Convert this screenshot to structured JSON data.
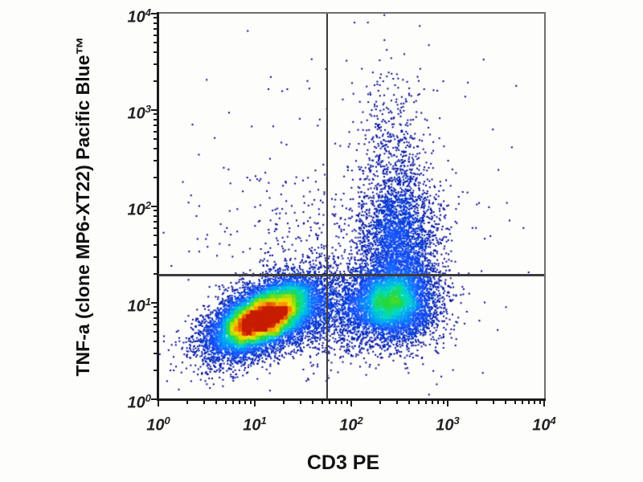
{
  "chart_data": {
    "type": "scatter",
    "subtype": "flow-cytometry-pseudocolor-density",
    "title": "",
    "xlabel": "CD3 PE",
    "ylabel": "TNF-a (clone MP6-XT22) Pacific Blue™",
    "x_scale": "log10",
    "y_scale": "log10",
    "xlim_exponents": [
      0,
      4
    ],
    "ylim_exponents": [
      0,
      4
    ],
    "tick_exponents": [
      0,
      1,
      2,
      3,
      4
    ],
    "minor_tick_multiples": [
      2,
      3,
      4,
      5,
      6,
      7,
      8,
      9
    ],
    "grid": false,
    "legend": false,
    "quadrant_gates": {
      "x_value_log10": 1.75,
      "y_value_log10": 1.29,
      "x_value_approx": 56,
      "y_value_approx": 20
    },
    "populations": [
      {
        "name": "CD3-negative TNF-negative (double-negative, red core)",
        "center_log10": [
          1.1,
          0.85
        ],
        "sigma_log10": [
          0.32,
          0.155
        ],
        "angle_deg": 28,
        "count": 11000,
        "clip": "clamp"
      },
      {
        "name": "CD3-positive TNF-negative (green core)",
        "center_log10": [
          2.42,
          1.0
        ],
        "sigma_log10": [
          0.24,
          0.2
        ],
        "angle_deg": 0,
        "count": 5000,
        "clip": "clamp"
      },
      {
        "name": "CD3-positive TNF-positive cloud",
        "center_log10": [
          2.5,
          1.62
        ],
        "sigma_log10": [
          0.21,
          0.34
        ],
        "angle_deg": 0,
        "count": 2600,
        "clip": "clamp"
      },
      {
        "name": "CD3-positive TNF-high tail",
        "center_log10": [
          2.42,
          2.35
        ],
        "sigma_log10": [
          0.2,
          0.5
        ],
        "angle_deg": 0,
        "count": 650,
        "clip": "clamp"
      },
      {
        "name": "bridge between populations",
        "center_log10": [
          1.8,
          0.85
        ],
        "sigma_log10": [
          0.3,
          0.22
        ],
        "angle_deg": 10,
        "count": 900,
        "clip": "clamp"
      },
      {
        "name": "upper-left sparse scatter",
        "center_log10": [
          1.55,
          1.5
        ],
        "sigma_log10": [
          0.42,
          0.38
        ],
        "angle_deg": 0,
        "count": 230,
        "clip": "discard"
      },
      {
        "name": "background scatter",
        "center_log10": [
          2.0,
          1.6
        ],
        "sigma_log10": [
          1.1,
          0.9
        ],
        "angle_deg": 0,
        "count": 300,
        "clip": "discard"
      }
    ],
    "colormap": [
      {
        "t": 0.0,
        "color": "#000085"
      },
      {
        "t": 0.14,
        "color": "#0030cc"
      },
      {
        "t": 0.28,
        "color": "#1555ff"
      },
      {
        "t": 0.42,
        "color": "#00a0f8"
      },
      {
        "t": 0.54,
        "color": "#00dcc0"
      },
      {
        "t": 0.65,
        "color": "#28d838"
      },
      {
        "t": 0.76,
        "color": "#aae000"
      },
      {
        "t": 0.85,
        "color": "#f0e000"
      },
      {
        "t": 0.93,
        "color": "#ff8000"
      },
      {
        "t": 1.0,
        "color": "#c81e00"
      }
    ],
    "render": {
      "seed": 7,
      "density_bins": 96,
      "cap_quantile": 0.88,
      "point_size": 2
    },
    "colors": {
      "axis": "#1b1b1b",
      "frame": "#6e6e6e",
      "gate": "#3c3c3c",
      "background": "#fdfdfc",
      "label": "#111111"
    }
  }
}
